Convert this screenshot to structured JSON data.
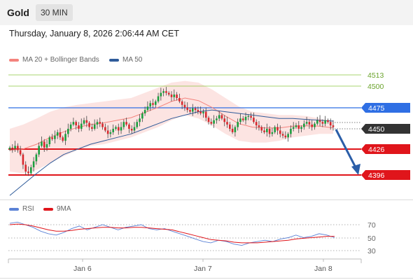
{
  "header": {
    "title": "Gold",
    "timeframe_button": "30 MIN",
    "datetime": "Thursday, January 8, 2026 2:06:44 AM CET"
  },
  "legend": {
    "ma20_label": "MA 20 + Bollinger Bands",
    "ma20_color": "#f4837d",
    "ma50_label": "MA 50",
    "ma50_color": "#2f5b9a"
  },
  "price_levels": [
    {
      "label": "4513",
      "kind": "resistance-text",
      "color": "#8dc63f"
    },
    {
      "label": "4500",
      "kind": "resistance-text",
      "color": "#8dc63f"
    },
    {
      "label": "4475",
      "kind": "tag",
      "color": "#2f6fe4"
    },
    {
      "label": "4450",
      "kind": "tag",
      "color": "#333333"
    },
    {
      "label": "4426",
      "kind": "tag",
      "color": "#e0151b"
    },
    {
      "label": "4396",
      "kind": "tag",
      "color": "#e0151b"
    }
  ],
  "forecast_arrow_color": "#2b5ea8",
  "rsi_legend": {
    "rsi_label": "RSI",
    "rsi_color": "#5b82d6",
    "ma9_label": "9MA",
    "ma9_color": "#e0151b"
  },
  "rsi_levels": [
    "70",
    "50",
    "30"
  ],
  "x_axis": {
    "labels": [
      "Jan 6",
      "Jan 7",
      "Jan 8"
    ]
  },
  "chart_data": [
    {
      "type": "candlestick",
      "y_axis_levels": [
        4513,
        4500,
        4475,
        4450,
        4426,
        4396
      ],
      "current_price": 4450,
      "x_labels": [
        "Jan 6",
        "Jan 7",
        "Jan 8"
      ],
      "close": [
        4428,
        4427,
        4430,
        4425,
        4420,
        4408,
        4400,
        4398,
        4405,
        4412,
        4420,
        4430,
        4435,
        4428,
        4432,
        4440,
        4438,
        4442,
        4446,
        4440,
        4436,
        4444,
        4450,
        4455,
        4458,
        4454,
        4450,
        4456,
        4460,
        4457,
        4452,
        4450,
        4455,
        4458,
        4456,
        4452,
        4448,
        4444,
        4446,
        4450,
        4452,
        4448,
        4452,
        4458,
        4455,
        4450,
        4448,
        4452,
        4458,
        4462,
        4468,
        4472,
        4476,
        4480,
        4478,
        4482,
        4488,
        4492,
        4494,
        4492,
        4490,
        4487,
        4490,
        4486,
        4482,
        4478,
        4475,
        4472,
        4470,
        4474,
        4472,
        4470,
        4468,
        4470,
        4463,
        4458,
        4456,
        4460,
        4462,
        4466,
        4462,
        4458,
        4455,
        4450,
        4446,
        4452,
        4458,
        4462,
        4460,
        4464,
        4465,
        4463,
        4458,
        4454,
        4452,
        4448,
        4446,
        4450,
        4444,
        4446,
        4452,
        4448,
        4444,
        4442,
        4440,
        4444,
        4450,
        4452,
        4454,
        4450,
        4452,
        4456,
        4458,
        4455,
        4452,
        4456,
        4460,
        4458,
        4456,
        4460,
        4458,
        4454,
        4452
      ],
      "ma20_band_upper": [
        4450,
        4455,
        4462,
        4470,
        4475,
        4478,
        4480,
        4482,
        4484,
        4486,
        4492,
        4498,
        4504,
        4506,
        4504,
        4496,
        4486,
        4476,
        4470,
        4468,
        4466,
        4466,
        4465,
        4462,
        4458
      ],
      "ma20_band_lower": [
        4400,
        4398,
        4402,
        4410,
        4418,
        4425,
        4430,
        4432,
        4436,
        4440,
        4446,
        4452,
        4460,
        4466,
        4462,
        4454,
        4444,
        4436,
        4434,
        4434,
        4436,
        4440,
        4442,
        4444,
        4444
      ],
      "ma50": [
        4372,
        4385,
        4398,
        4410,
        4420,
        4426,
        4432,
        4436,
        4440,
        4444,
        4450,
        4456,
        4462,
        4466,
        4470,
        4472,
        4470,
        4468,
        4466,
        4464,
        4462,
        4462,
        4461,
        4460,
        4459
      ],
      "forecast": {
        "from": 4450,
        "to": 4396
      }
    },
    {
      "type": "line",
      "title": "RSI",
      "levels": [
        70,
        50,
        30
      ],
      "series": [
        {
          "name": "RSI",
          "values": [
            72,
            74,
            70,
            66,
            60,
            56,
            54,
            58,
            64,
            68,
            62,
            66,
            70,
            66,
            62,
            66,
            68,
            70,
            64,
            62,
            64,
            60,
            56,
            52,
            48,
            44,
            42,
            46,
            44,
            40,
            38,
            42,
            44,
            46,
            44,
            48,
            50,
            54,
            50,
            52,
            56,
            54,
            50
          ]
        },
        {
          "name": "9MA",
          "values": [
            70,
            71,
            70,
            68,
            65,
            62,
            60,
            60,
            61,
            63,
            64,
            65,
            66,
            66,
            65,
            65,
            66,
            66,
            65,
            64,
            63,
            62,
            59,
            56,
            53,
            50,
            47,
            46,
            45,
            43,
            42,
            42,
            42,
            43,
            44,
            45,
            46,
            48,
            49,
            50,
            51,
            52,
            52
          ]
        }
      ]
    }
  ]
}
